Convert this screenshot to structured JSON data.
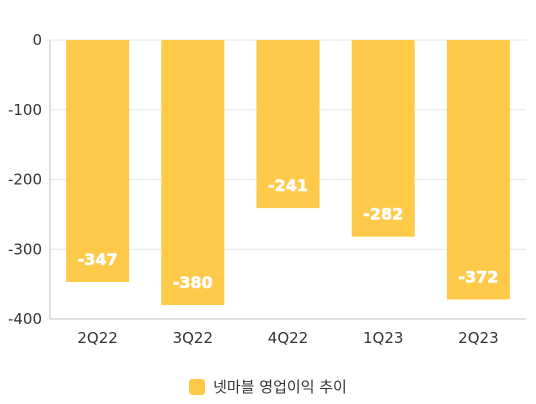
{
  "chart_data": {
    "type": "bar",
    "categories": [
      "2Q22",
      "3Q22",
      "4Q22",
      "1Q23",
      "2Q23"
    ],
    "series": [
      {
        "name": "넷마블 영업이익 추이",
        "values": [
          -347,
          -380,
          -241,
          -282,
          -372
        ]
      }
    ],
    "data_labels": [
      "-347",
      "-380",
      "-241",
      "-282",
      "-372"
    ],
    "y_ticks": [
      0,
      -100,
      -200,
      -300,
      -400
    ],
    "y_tick_labels": [
      "0",
      "-100",
      "-200",
      "-300",
      "-400"
    ],
    "ylim": [
      -400,
      0
    ],
    "grid": true,
    "legend_position": "bottom",
    "colors": {
      "bar": "#FFC94A",
      "grid": "#E6E6E6",
      "axis": "#BFBFBF",
      "data_label": "#FFFFFF"
    }
  },
  "legend": {
    "label": "넷마블 영업이익 추이"
  }
}
